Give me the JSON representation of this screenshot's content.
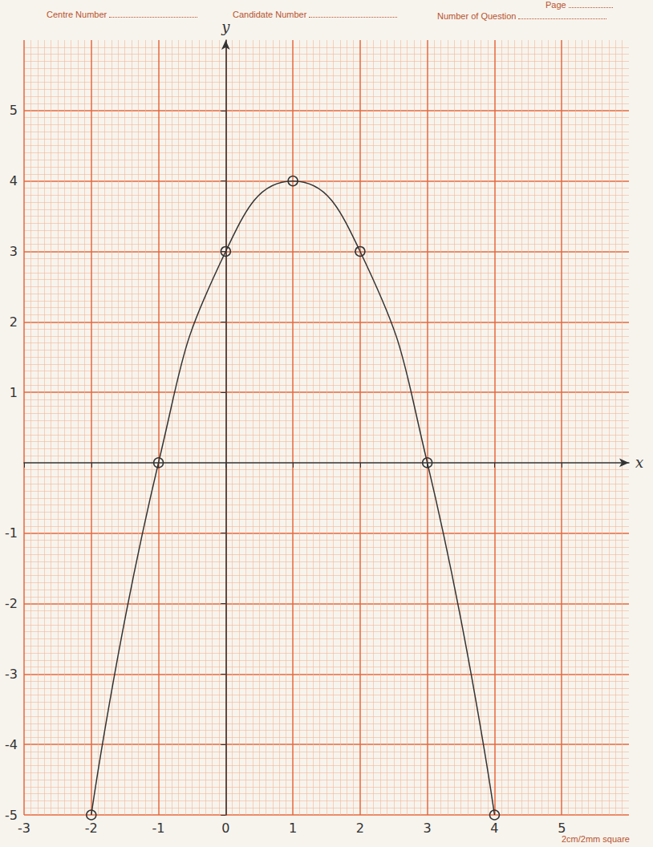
{
  "header": {
    "centre_number": "Centre Number",
    "candidate_number": "Candidate Number",
    "number_of_question": "Number of Question",
    "page": "Page"
  },
  "footer": "2cm/2mm square",
  "chart_data": {
    "type": "line",
    "x_label": "x",
    "y_label": "y",
    "x": [
      -2,
      -1,
      0,
      1,
      2,
      3,
      4
    ],
    "values": [
      -5,
      0,
      3,
      4,
      3,
      0,
      -5
    ],
    "color": "#333333",
    "marker": "circle",
    "line_style": "smooth",
    "xlim": [
      -3,
      6
    ],
    "ylim": [
      -5,
      6
    ],
    "xticks": [
      -3,
      -2,
      -1,
      0,
      1,
      2,
      3,
      4,
      5
    ],
    "yticks": [
      -5,
      -4,
      -3,
      -2,
      -1,
      1,
      2,
      3,
      4,
      5
    ],
    "grid": true
  }
}
